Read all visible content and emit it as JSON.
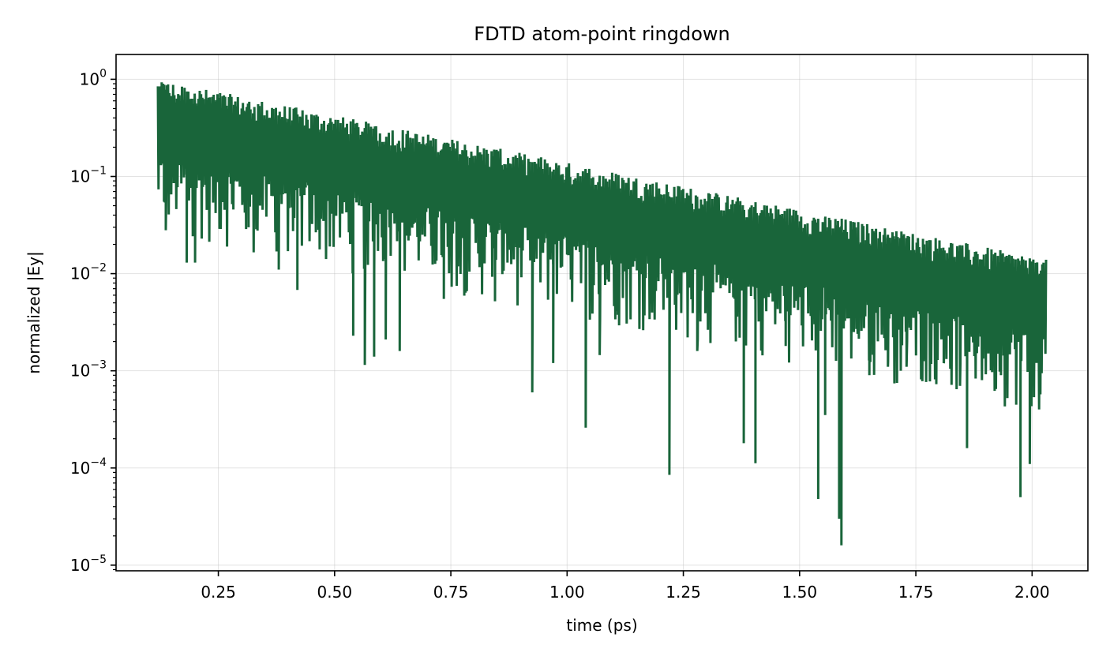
{
  "chart_data": {
    "type": "line",
    "title": "FDTD atom-point ringdown",
    "xlabel": "time (ps)",
    "ylabel": "normalized |Ey|",
    "yscale": "log",
    "xlim": [
      0.03,
      2.12
    ],
    "ylim": [
      8.75e-06,
      1.8
    ],
    "grid": true,
    "color": "#19653a",
    "xticks": [
      {
        "value": 0.25,
        "label": "0.25"
      },
      {
        "value": 0.5,
        "label": "0.50"
      },
      {
        "value": 0.75,
        "label": "0.75"
      },
      {
        "value": 1.0,
        "label": "1.00"
      },
      {
        "value": 1.25,
        "label": "1.25"
      },
      {
        "value": 1.5,
        "label": "1.50"
      },
      {
        "value": 1.75,
        "label": "1.75"
      },
      {
        "value": 2.0,
        "label": "2.00"
      }
    ],
    "yticks": [
      {
        "value": 1,
        "base": "10",
        "exp": "0"
      },
      {
        "value": 0.1,
        "base": "10",
        "exp": "−1"
      },
      {
        "value": 0.01,
        "base": "10",
        "exp": "−2"
      },
      {
        "value": 0.001,
        "base": "10",
        "exp": "−3"
      },
      {
        "value": 0.0001,
        "base": "10",
        "exp": "−4"
      },
      {
        "value": 1e-05,
        "base": "10",
        "exp": "−5"
      }
    ],
    "series": [
      {
        "x_start": 0.12,
        "x_end": 2.03,
        "envelope_start": 1.0,
        "envelope_end": 0.014,
        "typical_trough_ratio": 0.1,
        "deep_dips": [
          {
            "x": 0.128,
            "y": 0.23
          },
          {
            "x": 0.133,
            "y": 0.055
          },
          {
            "x": 0.137,
            "y": 0.028
          },
          {
            "x": 0.182,
            "y": 0.013
          },
          {
            "x": 0.2,
            "y": 0.013
          },
          {
            "x": 0.315,
            "y": 0.03
          },
          {
            "x": 0.38,
            "y": 0.011
          },
          {
            "x": 0.42,
            "y": 0.0068
          },
          {
            "x": 0.54,
            "y": 0.0023
          },
          {
            "x": 0.565,
            "y": 0.00115
          },
          {
            "x": 0.585,
            "y": 0.0014
          },
          {
            "x": 0.61,
            "y": 0.0021
          },
          {
            "x": 0.64,
            "y": 0.0016
          },
          {
            "x": 0.735,
            "y": 0.0055
          },
          {
            "x": 0.845,
            "y": 0.0052
          },
          {
            "x": 0.925,
            "y": 0.0006
          },
          {
            "x": 0.97,
            "y": 0.0012
          },
          {
            "x": 1.04,
            "y": 0.00026
          },
          {
            "x": 1.07,
            "y": 0.00145
          },
          {
            "x": 1.22,
            "y": 8.5e-05
          },
          {
            "x": 1.28,
            "y": 0.0016
          },
          {
            "x": 1.38,
            "y": 0.00018
          },
          {
            "x": 1.405,
            "y": 0.000112
          },
          {
            "x": 1.47,
            "y": 0.0018
          },
          {
            "x": 1.54,
            "y": 4.8e-05
          },
          {
            "x": 1.555,
            "y": 0.00035
          },
          {
            "x": 1.585,
            "y": 3e-05
          },
          {
            "x": 1.59,
            "y": 1.6e-05
          },
          {
            "x": 1.65,
            "y": 0.0009
          },
          {
            "x": 1.69,
            "y": 0.0011
          },
          {
            "x": 1.73,
            "y": 0.0011
          },
          {
            "x": 1.81,
            "y": 0.0012
          },
          {
            "x": 1.845,
            "y": 0.0007
          },
          {
            "x": 1.86,
            "y": 0.00016
          },
          {
            "x": 1.975,
            "y": 5e-05
          },
          {
            "x": 1.995,
            "y": 0.00011
          },
          {
            "x": 2.0,
            "y": 0.0016
          },
          {
            "x": 2.02,
            "y": 0.0025
          }
        ]
      }
    ]
  }
}
